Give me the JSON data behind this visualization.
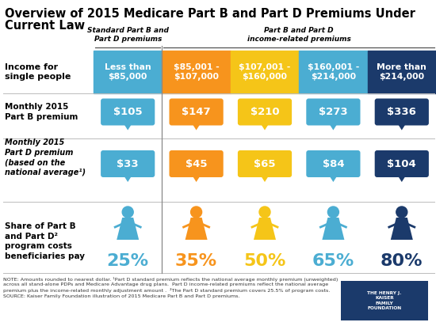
{
  "title_line1": "Overview of 2015 Medicare Part B and Part D Premiums Under",
  "title_line2": "Current Law",
  "bg_color": "#ffffff",
  "col_colors": [
    "#4badd2",
    "#f7941d",
    "#f5c518",
    "#4badd2",
    "#1b3a6b"
  ],
  "income_labels": [
    "Less than\n$85,000",
    "$85,001 -\n$107,000",
    "$107,001 -\n$160,000",
    "$160,001 -\n$214,000",
    "More than\n$214,000"
  ],
  "part_b_premiums": [
    "$105",
    "$147",
    "$210",
    "$273",
    "$336"
  ],
  "part_d_premiums": [
    "$33",
    "$45",
    "$65",
    "$84",
    "$104"
  ],
  "share_pct": [
    "25%",
    "35%",
    "50%",
    "65%",
    "80%"
  ],
  "share_pct_colors": [
    "#4badd2",
    "#f7941d",
    "#f5c518",
    "#4badd2",
    "#1b3a6b"
  ],
  "standard_label": "Standard Part B and\nPart D premiums",
  "income_related_label": "Part B and Part D\nincome-related premiums",
  "row_label_income": "Income for\nsingle people",
  "row_label_partb": "Monthly 2015\nPart B premium",
  "row_label_partd": "Monthly 2015\nPart D premium\n(based on the\nnational average¹)",
  "row_label_share": "Share of Part B\nand Part D²\nprogram costs\nbeneficiaries pay",
  "note_text": "NOTE: Amounts rounded to nearest dollar. ¹Part D standard premium reflects the national average monthly premium (unweighted)\nacross all stand-alone PDPs and Medicare Advantage drug plans.  Part D income-related premiums reflect the national average\npremium plus the income-related monthly adjustment amount .  ²The Part D standard premium covers 25.5% of program costs.\nSOURCE: Kaiser Family Foundation illustration of 2015 Medicare Part B and Part D premiums.",
  "figure_width": 5.5,
  "figure_height": 4.12,
  "dpi": 100
}
